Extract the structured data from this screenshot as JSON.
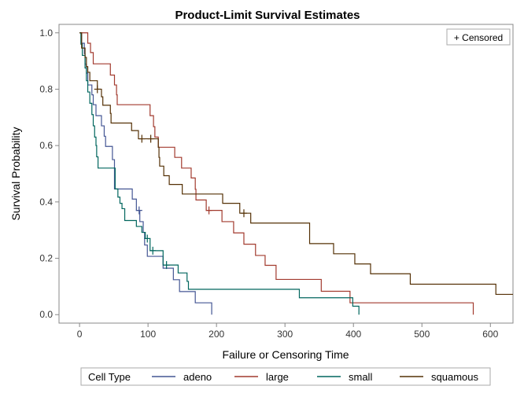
{
  "chart_data": {
    "type": "line",
    "subtype": "step-survival",
    "title": "Product-Limit Survival Estimates",
    "xlabel": "Failure or Censoring Time",
    "ylabel": "Survival Probability",
    "xlim": [
      -30,
      633
    ],
    "ylim": [
      -0.03,
      1.03
    ],
    "xticks": [
      0,
      100,
      200,
      300,
      400,
      500,
      600
    ],
    "yticks": [
      0.0,
      0.2,
      0.4,
      0.6,
      0.8,
      1.0
    ],
    "xtick_labels": [
      "0",
      "100",
      "200",
      "300",
      "400",
      "500",
      "600"
    ],
    "ytick_labels": [
      "0.0",
      "0.2",
      "0.4",
      "0.6",
      "0.8",
      "1.0"
    ],
    "grid": false,
    "inset_legend": {
      "label": "+ Censored",
      "placement": "top-right"
    },
    "legend": {
      "title": "Cell Type",
      "placement": "bottom"
    },
    "series": [
      {
        "name": "adeno",
        "color": "#445694",
        "steps": [
          [
            0,
            1.0
          ],
          [
            3,
            0.963
          ],
          [
            7,
            0.926
          ],
          [
            8,
            0.889
          ],
          [
            10,
            0.857
          ],
          [
            12,
            0.815
          ],
          [
            18,
            0.78
          ],
          [
            20,
            0.745
          ],
          [
            24,
            0.706
          ],
          [
            32,
            0.67
          ],
          [
            36,
            0.633
          ],
          [
            38,
            0.597
          ],
          [
            48,
            0.55
          ],
          [
            51,
            0.446
          ],
          [
            77,
            0.41
          ],
          [
            83,
            0.37
          ],
          [
            88,
            0.33
          ],
          [
            93,
            0.292
          ],
          [
            95,
            0.247
          ],
          [
            99,
            0.207
          ],
          [
            122,
            0.165
          ],
          [
            137,
            0.124
          ],
          [
            146,
            0.082
          ],
          [
            169,
            0.042
          ],
          [
            193,
            0.0
          ]
        ],
        "censored": [
          [
            87,
            0.37
          ]
        ]
      },
      {
        "name": "large",
        "color": "#a23a2e",
        "steps": [
          [
            0,
            1.0
          ],
          [
            12,
            0.963
          ],
          [
            16,
            0.93
          ],
          [
            20,
            0.89
          ],
          [
            45,
            0.85
          ],
          [
            51,
            0.815
          ],
          [
            54,
            0.78
          ],
          [
            55,
            0.745
          ],
          [
            103,
            0.706
          ],
          [
            108,
            0.667
          ],
          [
            110,
            0.63
          ],
          [
            115,
            0.594
          ],
          [
            139,
            0.558
          ],
          [
            149,
            0.52
          ],
          [
            163,
            0.485
          ],
          [
            169,
            0.445
          ],
          [
            170,
            0.407
          ],
          [
            185,
            0.37
          ],
          [
            208,
            0.33
          ],
          [
            225,
            0.29
          ],
          [
            240,
            0.25
          ],
          [
            257,
            0.21
          ],
          [
            271,
            0.175
          ],
          [
            287,
            0.125
          ],
          [
            353,
            0.083
          ],
          [
            395,
            0.042
          ],
          [
            575,
            0.0
          ]
        ],
        "censored": [
          [
            189,
            0.37
          ]
        ]
      },
      {
        "name": "small",
        "color": "#01665e",
        "steps": [
          [
            0,
            1.0
          ],
          [
            2,
            0.96
          ],
          [
            4,
            0.92
          ],
          [
            8,
            0.875
          ],
          [
            10,
            0.83
          ],
          [
            12,
            0.79
          ],
          [
            15,
            0.75
          ],
          [
            18,
            0.71
          ],
          [
            20,
            0.67
          ],
          [
            22,
            0.63
          ],
          [
            24,
            0.6
          ],
          [
            25,
            0.56
          ],
          [
            27,
            0.52
          ],
          [
            52,
            0.446
          ],
          [
            56,
            0.417
          ],
          [
            59,
            0.395
          ],
          [
            62,
            0.376
          ],
          [
            66,
            0.334
          ],
          [
            83,
            0.313
          ],
          [
            91,
            0.292
          ],
          [
            96,
            0.27
          ],
          [
            103,
            0.227
          ],
          [
            122,
            0.176
          ],
          [
            144,
            0.148
          ],
          [
            157,
            0.118
          ],
          [
            159,
            0.09
          ],
          [
            321,
            0.06
          ],
          [
            399,
            0.03
          ],
          [
            408,
            0.0
          ]
        ],
        "censored": [
          [
            99,
            0.27
          ],
          [
            107,
            0.227
          ],
          [
            127,
            0.176
          ]
        ]
      },
      {
        "name": "squamous",
        "color": "#543005",
        "steps": [
          [
            0,
            1.0
          ],
          [
            3,
            0.946
          ],
          [
            8,
            0.913
          ],
          [
            10,
            0.88
          ],
          [
            12,
            0.86
          ],
          [
            15,
            0.83
          ],
          [
            26,
            0.8
          ],
          [
            32,
            0.773
          ],
          [
            34,
            0.743
          ],
          [
            45,
            0.714
          ],
          [
            46,
            0.68
          ],
          [
            76,
            0.653
          ],
          [
            86,
            0.624
          ],
          [
            115,
            0.594
          ],
          [
            116,
            0.558
          ],
          [
            117,
            0.527
          ],
          [
            123,
            0.493
          ],
          [
            131,
            0.462
          ],
          [
            150,
            0.428
          ],
          [
            209,
            0.395
          ],
          [
            234,
            0.36
          ],
          [
            250,
            0.325
          ],
          [
            336,
            0.252
          ],
          [
            371,
            0.216
          ],
          [
            402,
            0.18
          ],
          [
            425,
            0.145
          ],
          [
            483,
            0.108
          ],
          [
            608,
            0.072
          ]
        ],
        "extends_past_axis": true,
        "censored": [
          [
            26,
            0.8
          ],
          [
            91,
            0.624
          ],
          [
            104,
            0.624
          ],
          [
            240,
            0.36
          ]
        ]
      }
    ]
  }
}
